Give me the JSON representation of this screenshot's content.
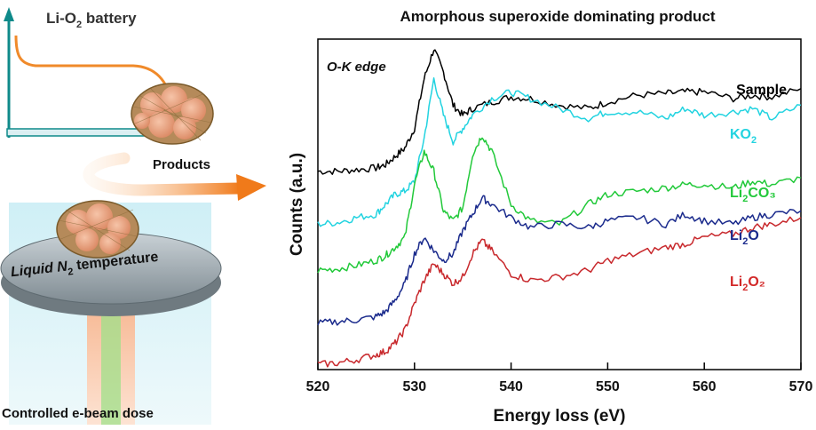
{
  "left_panel": {
    "battery_label": "Li-O",
    "battery_sub": "2",
    "battery_tail": " battery",
    "products_label": "Products",
    "stage_label_pre": "Liquid N",
    "stage_label_sub": "2",
    "stage_label_post": " temperature",
    "beam_label": "Controlled e-beam dose",
    "colors": {
      "curve": "#f08a2a",
      "arrow": "#f07a1a",
      "axis": "#0e8a8a",
      "stage": "#9aa6ac",
      "particle": "#e8a07a"
    }
  },
  "chart_data": {
    "type": "line",
    "title": "Amorphous superoxide dominating product",
    "annotation": "O-K edge",
    "xlabel": "Energy loss (eV)",
    "ylabel": "Counts (a.u.)",
    "xlim": [
      520,
      570
    ],
    "ylim": [
      0,
      10
    ],
    "xticks": [
      520,
      530,
      540,
      550,
      560,
      570
    ],
    "y_ticks_labeled": false,
    "series": [
      {
        "name": "Sample",
        "sub": "",
        "tail": "",
        "color": "#000000",
        "label_color": "#000000",
        "x": [
          520,
          522,
          524,
          526,
          527,
          528,
          529,
          530,
          531,
          532,
          533,
          534,
          535,
          536,
          538,
          540,
          542,
          545,
          548,
          550,
          553,
          556,
          558,
          560,
          563,
          565,
          567,
          570
        ],
        "y": [
          6.0,
          6.0,
          6.05,
          6.1,
          6.2,
          6.45,
          6.7,
          7.3,
          8.8,
          9.7,
          9.0,
          8.0,
          7.7,
          7.9,
          8.1,
          8.25,
          8.2,
          8.0,
          7.9,
          8.1,
          8.3,
          8.35,
          8.4,
          8.4,
          8.2,
          8.3,
          8.25,
          8.5
        ]
      },
      {
        "name": "KO",
        "sub": "2",
        "tail": "",
        "color": "#22d3e0",
        "label_color": "#22d3e0",
        "x": [
          520,
          522,
          524,
          526,
          527,
          528,
          529,
          530,
          531,
          532,
          533,
          534,
          535,
          536,
          538,
          540,
          542,
          545,
          548,
          550,
          553,
          556,
          558,
          560,
          563,
          565,
          567,
          570
        ],
        "y": [
          4.4,
          4.45,
          4.6,
          4.7,
          5.0,
          5.3,
          5.4,
          5.7,
          7.0,
          8.8,
          7.7,
          6.9,
          7.3,
          7.7,
          8.2,
          8.4,
          8.2,
          7.9,
          7.6,
          7.8,
          7.8,
          7.6,
          7.9,
          7.7,
          7.8,
          7.9,
          7.6,
          8.0
        ]
      },
      {
        "name": "Li",
        "sub": "2",
        "tail": "CO₃",
        "color": "#22c93a",
        "label_color": "#22c93a",
        "x": [
          520,
          522,
          524,
          526,
          527,
          528,
          529,
          530,
          531,
          532,
          533,
          534,
          535,
          536,
          537,
          538,
          540,
          542,
          545,
          548,
          550,
          553,
          556,
          558,
          560,
          563,
          565,
          567,
          570
        ],
        "y": [
          3.0,
          3.05,
          3.15,
          3.3,
          3.45,
          3.7,
          4.0,
          5.6,
          6.6,
          6.0,
          4.8,
          4.5,
          4.9,
          6.5,
          7.1,
          6.6,
          5.0,
          4.5,
          4.4,
          5.0,
          5.3,
          5.4,
          5.5,
          5.6,
          5.6,
          5.5,
          5.7,
          5.6,
          5.8
        ]
      },
      {
        "name": "Li",
        "sub": "2",
        "tail": "O",
        "color": "#1a2a8c",
        "label_color": "#1a2a8c",
        "x": [
          520,
          522,
          524,
          526,
          527,
          528,
          529,
          530,
          531,
          532,
          533,
          534,
          535,
          536,
          537,
          538,
          540,
          542,
          545,
          548,
          550,
          553,
          556,
          558,
          560,
          563,
          565,
          567,
          570
        ],
        "y": [
          1.4,
          1.45,
          1.5,
          1.6,
          1.75,
          2.1,
          2.6,
          3.5,
          4.0,
          3.6,
          3.3,
          3.5,
          4.2,
          4.7,
          5.2,
          5.0,
          4.6,
          4.3,
          4.4,
          4.3,
          4.5,
          4.6,
          4.4,
          4.7,
          4.5,
          4.4,
          4.6,
          4.7,
          4.8
        ]
      },
      {
        "name": "Li",
        "sub": "2",
        "tail": "O₂",
        "color": "#c8282c",
        "label_color": "#d22828",
        "x": [
          520,
          522,
          524,
          526,
          527,
          528,
          529,
          530,
          531,
          532,
          533,
          534,
          535,
          536,
          537,
          538,
          540,
          542,
          545,
          548,
          550,
          553,
          556,
          558,
          560,
          563,
          565,
          567,
          570
        ],
        "y": [
          0.15,
          0.2,
          0.3,
          0.45,
          0.55,
          0.8,
          1.2,
          2.0,
          2.7,
          3.2,
          2.9,
          2.6,
          2.8,
          3.5,
          3.9,
          3.6,
          2.9,
          2.7,
          2.8,
          3.0,
          3.3,
          3.5,
          3.7,
          3.8,
          4.0,
          4.1,
          4.3,
          4.4,
          4.6
        ]
      }
    ]
  }
}
